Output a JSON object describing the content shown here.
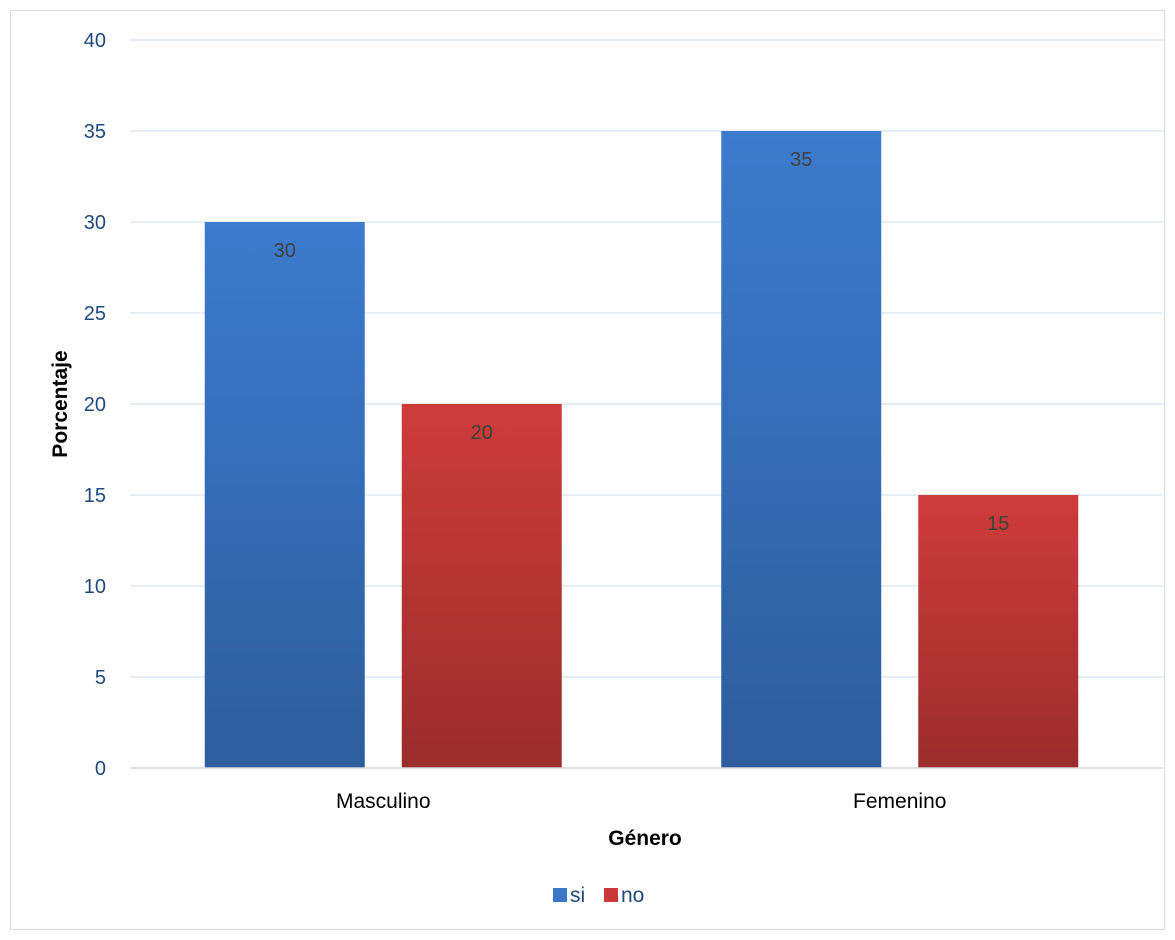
{
  "chart_data": {
    "type": "bar",
    "title": "",
    "xlabel": "Género",
    "ylabel": "Porcentaje",
    "categories": [
      "Masculino",
      "Femenino"
    ],
    "series": [
      {
        "name": "si",
        "values": [
          30,
          35
        ],
        "color": "#3a77c8"
      },
      {
        "name": "no",
        "values": [
          20,
          15
        ],
        "color": "#c73a38"
      }
    ],
    "ylim": [
      0,
      40
    ],
    "yticks": [
      0,
      5,
      10,
      15,
      20,
      25,
      30,
      35,
      40
    ],
    "grid": true,
    "data_labels": true,
    "legend_position": "bottom"
  }
}
